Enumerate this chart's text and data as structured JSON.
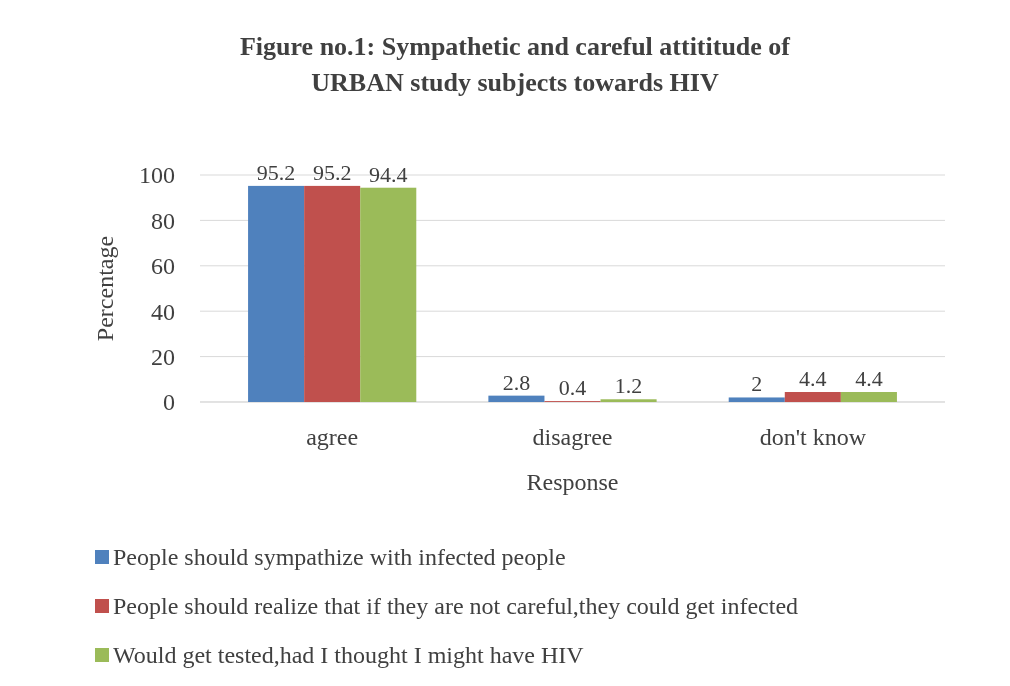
{
  "chart_data": {
    "type": "bar",
    "title": "Figure no.1: Sympathetic and careful attititude of URBAN study subjects towards HIV",
    "xlabel": "Response",
    "ylabel": "Percentage",
    "categories": [
      "agree",
      "disagree",
      "don't know"
    ],
    "series": [
      {
        "name": "People should sympathize with infected people",
        "color": "#4f81bd",
        "values": [
          95.2,
          2.8,
          2
        ]
      },
      {
        "name": "People should realize that if they are not careful,they could get infected",
        "color": "#c0504d",
        "values": [
          95.2,
          0.4,
          4.4
        ]
      },
      {
        "name": "Would get tested,had I thought I might have HIV",
        "color": "#9bbb59",
        "values": [
          94.4,
          1.2,
          4.4
        ]
      }
    ],
    "ylim": [
      0,
      100
    ],
    "yticks": [
      0,
      20,
      40,
      60,
      80,
      100
    ],
    "grid": "y",
    "legend": "bottom",
    "data_labels": true
  }
}
